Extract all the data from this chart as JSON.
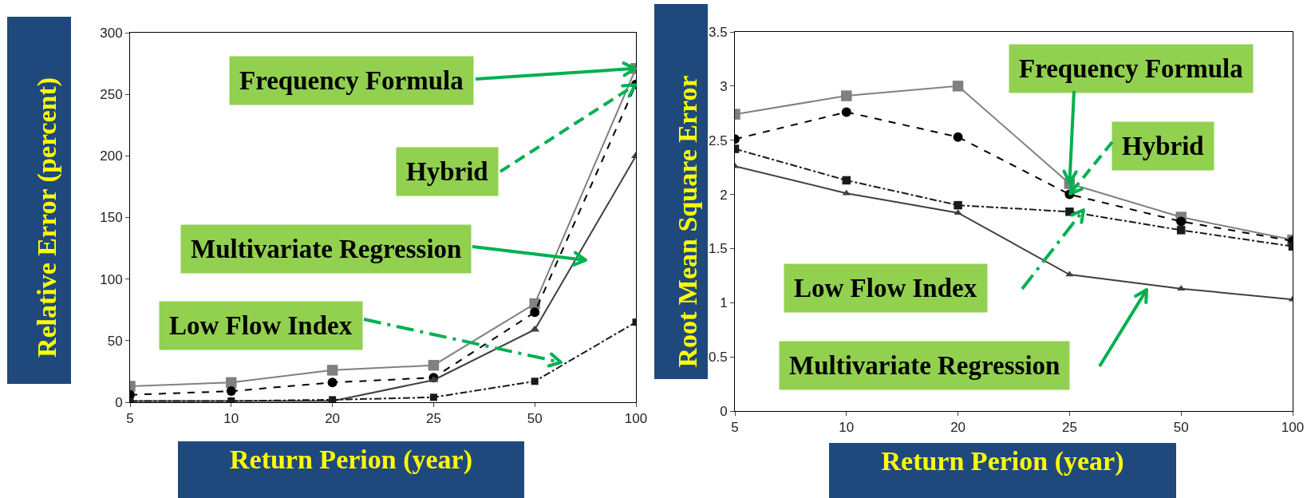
{
  "chart_data": [
    {
      "type": "line",
      "xlabel": "Return Perion (year)",
      "ylabel": "Relative Error (percent)",
      "categories": [
        "5",
        "10",
        "20",
        "25",
        "50",
        "100"
      ],
      "series": [
        {
          "color": "#808080",
          "marker": "square",
          "line_style": "solid",
          "values": [
            13,
            16,
            26,
            30,
            80,
            271
          ]
        },
        {
          "color": "#000000",
          "marker": "circle",
          "line_style": "dashed",
          "values": [
            6,
            9,
            16,
            20,
            73,
            258
          ]
        },
        {
          "color": "#404040",
          "marker": "triangle",
          "line_style": "solid",
          "values": [
            1,
            1,
            1,
            18,
            59,
            200
          ]
        },
        {
          "color": "#1a1a1a",
          "marker": "square",
          "line_style": "dashdot",
          "values": [
            1,
            1,
            2,
            4,
            17,
            65
          ]
        }
      ],
      "ylim": [
        0,
        300
      ],
      "yticks": [
        0,
        50,
        100,
        150,
        200,
        250,
        300
      ],
      "annotations": [
        {
          "text": "Frequency Formula",
          "x": "100",
          "y": 271
        },
        {
          "text": "Hybrid",
          "x": "100",
          "y": 258
        },
        "Multivariate Regression",
        "Low Flow Index"
      ]
    },
    {
      "type": "line",
      "xlabel": "Return Perion (year)",
      "ylabel": "Root Mean Square Error",
      "categories": [
        "5",
        "10",
        "20",
        "25",
        "50",
        "100"
      ],
      "series": [
        {
          "color": "#808080",
          "marker": "square",
          "line_style": "solid",
          "values": [
            2.74,
            2.91,
            3.0,
            2.1,
            1.79,
            1.58
          ]
        },
        {
          "color": "#000000",
          "marker": "circle",
          "line_style": "dashed",
          "values": [
            2.51,
            2.76,
            2.53,
            2.0,
            1.75,
            1.57
          ]
        },
        {
          "color": "#1a1a1a",
          "marker": "square",
          "line_style": "dashdot",
          "values": [
            2.42,
            2.13,
            1.9,
            1.84,
            1.67,
            1.52
          ]
        },
        {
          "color": "#404040",
          "marker": "triangle",
          "line_style": "solid",
          "values": [
            2.26,
            2.01,
            1.83,
            1.26,
            1.13,
            1.03
          ]
        }
      ],
      "ylim": [
        0,
        3.5
      ],
      "yticks": [
        0,
        0.5,
        1,
        1.5,
        2,
        2.5,
        3,
        3.5
      ],
      "annotations": [
        {
          "text": "Frequency Formula",
          "x": "25",
          "y": 2.1
        },
        {
          "text": "Hybrid",
          "x": "25",
          "y": 2.0
        },
        "Low Flow Index",
        "Multivariate Regression"
      ]
    }
  ]
}
